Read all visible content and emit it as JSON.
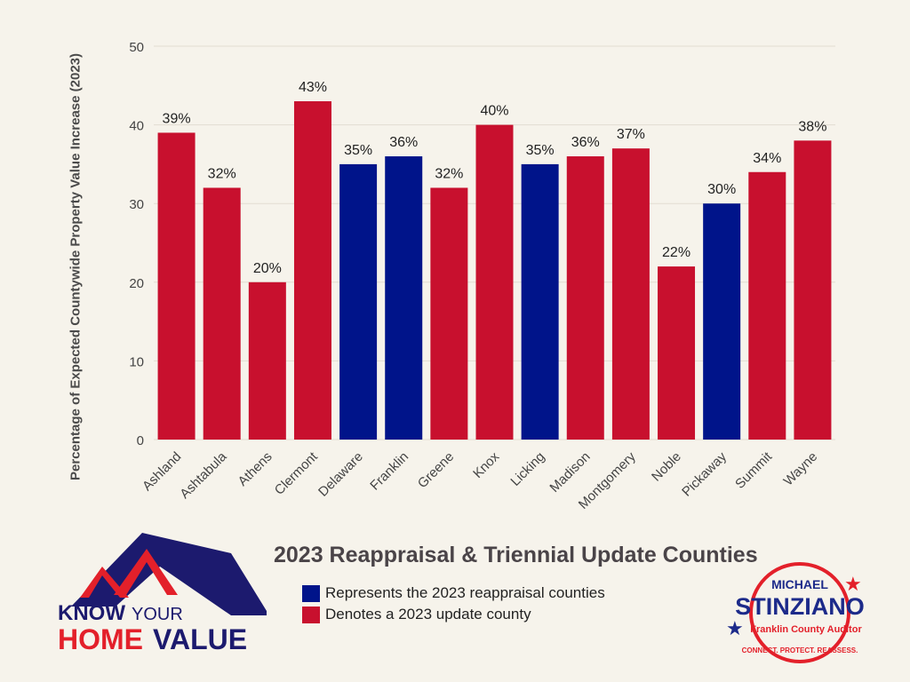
{
  "chart_data": {
    "type": "bar",
    "title": "2023 Reappraisal & Triennial Update Counties",
    "xlabel": "",
    "ylabel": "Percentage of Expected Countywide Property Value Increase (2023)",
    "ylim": [
      0,
      50
    ],
    "yticks": [
      0,
      10,
      20,
      30,
      40,
      50
    ],
    "grid": true,
    "categories": [
      "Ashland",
      "Ashtabula",
      "Athens",
      "Clermont",
      "Delaware",
      "Franklin",
      "Greene",
      "Knox",
      "Licking",
      "Madison",
      "Montgomery",
      "Noble",
      "Pickaway",
      "Summit",
      "Wayne"
    ],
    "values": [
      39,
      32,
      20,
      43,
      35,
      36,
      32,
      40,
      35,
      36,
      37,
      22,
      30,
      34,
      38
    ],
    "data_labels": [
      "39%",
      "32%",
      "20%",
      "43%",
      "35%",
      "36%",
      "32%",
      "40%",
      "35%",
      "36%",
      "37%",
      "22%",
      "30%",
      "34%",
      "38%"
    ],
    "groups": [
      "update",
      "update",
      "update",
      "update",
      "reappraisal",
      "reappraisal",
      "update",
      "update",
      "reappraisal",
      "update",
      "update",
      "update",
      "reappraisal",
      "update",
      "update"
    ],
    "legend": [
      {
        "key": "reappraisal",
        "label": "Represents the 2023 reappraisal counties",
        "color": "#00148a"
      },
      {
        "key": "update",
        "label": "Denotes a 2023 update county",
        "color": "#c8102e"
      }
    ],
    "legend_position": "bottom-center"
  },
  "logos": {
    "left": {
      "line1a": "KNOW",
      "line1b": "YOUR",
      "line2a": "HOME",
      "line2b": "VALUE"
    },
    "right": {
      "top": "MICHAEL",
      "name": "STINZIANO",
      "sub": "Franklin County Auditor",
      "motto": "CONNECT. PROTECT. REASSESS."
    }
  }
}
